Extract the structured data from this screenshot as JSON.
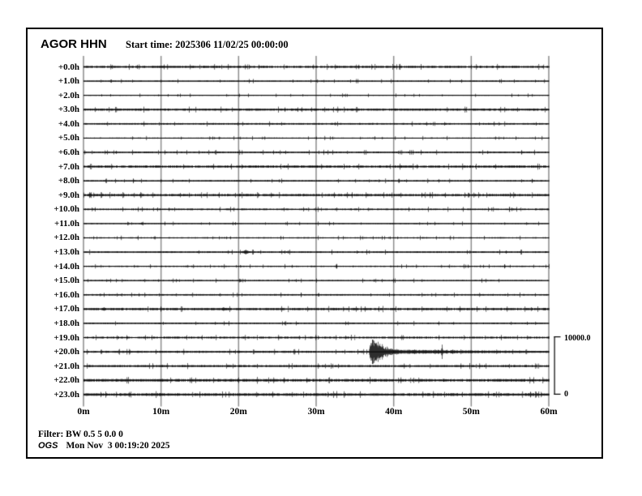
{
  "header": {
    "station": "AGOR HHN",
    "start_time_label": "Start time: 2025306 11/02/25 00:00:00"
  },
  "footer": {
    "filter": "Filter: BW 0.5 5 0.0 0",
    "agency": "OGS",
    "generated": "Mon Nov  3 00:19:20 2025"
  },
  "chart_data": {
    "type": "line",
    "subtype": "helicorder",
    "title": "AGOR HHN",
    "start_time": "2025306 11/02/25 00:00:00",
    "x_axis": {
      "ticks": [
        "0m",
        "10m",
        "20m",
        "30m",
        "40m",
        "50m",
        "60m"
      ],
      "tick_minutes": [
        0,
        10,
        20,
        30,
        40,
        50,
        60
      ],
      "range_minutes": [
        0,
        60
      ],
      "grid": true
    },
    "y_axis": {
      "unit": "hours since start",
      "rows_count": 24
    },
    "scale_bar": {
      "max_label": "10000.0",
      "min_label": "0",
      "counts": 10000,
      "spans_rows": 4
    },
    "colors": {
      "trace": "#000000",
      "grid": "#8c8c8c",
      "background": "#ffffff"
    },
    "main_event": {
      "row_label": "+20.0h",
      "onset_minute": 36.8,
      "peak_counts_approx": 2800,
      "coda_end_minute": 60
    },
    "rows": [
      {
        "label": "+0.0h",
        "noise_amp": 1.4,
        "density": 0.95,
        "events": []
      },
      {
        "label": "+1.0h",
        "noise_amp": 0.9,
        "density": 0.35,
        "events": []
      },
      {
        "label": "+2.0h",
        "noise_amp": 0.7,
        "density": 0.22,
        "events": []
      },
      {
        "label": "+3.0h",
        "noise_amp": 1.4,
        "density": 0.95,
        "events": []
      },
      {
        "label": "+4.0h",
        "noise_amp": 1.1,
        "density": 0.55,
        "events": []
      },
      {
        "label": "+5.0h",
        "noise_amp": 0.8,
        "density": 0.3,
        "events": []
      },
      {
        "label": "+6.0h",
        "noise_amp": 1.1,
        "density": 0.6,
        "events": []
      },
      {
        "label": "+7.0h",
        "noise_amp": 1.5,
        "density": 0.95,
        "events": []
      },
      {
        "label": "+8.0h",
        "noise_amp": 1.0,
        "density": 0.6,
        "events": []
      },
      {
        "label": "+9.0h",
        "noise_amp": 1.5,
        "density": 0.9,
        "events": [
          {
            "minute": 0.8,
            "amp": 2.5,
            "width": 0.4
          }
        ]
      },
      {
        "label": "+10.0h",
        "noise_amp": 1.1,
        "density": 0.6,
        "events": []
      },
      {
        "label": "+11.0h",
        "noise_amp": 0.8,
        "density": 0.4,
        "events": [
          {
            "minute": 7.5,
            "amp": 2.0,
            "width": 0.3
          }
        ]
      },
      {
        "label": "+12.0h",
        "noise_amp": 0.9,
        "density": 0.5,
        "events": []
      },
      {
        "label": "+13.0h",
        "noise_amp": 1.1,
        "density": 0.6,
        "events": [
          {
            "minute": 20.9,
            "amp": 2.6,
            "width": 0.8
          }
        ]
      },
      {
        "label": "+14.0h",
        "noise_amp": 0.9,
        "density": 0.5,
        "events": [
          {
            "minute": 32.6,
            "amp": 4.0,
            "width": 0.15
          }
        ]
      },
      {
        "label": "+15.0h",
        "noise_amp": 0.9,
        "density": 0.5,
        "events": []
      },
      {
        "label": "+16.0h",
        "noise_amp": 1.0,
        "density": 0.6,
        "events": []
      },
      {
        "label": "+17.0h",
        "noise_amp": 1.5,
        "density": 0.95,
        "events": [
          {
            "minute": 2.6,
            "amp": 2.5,
            "width": 0.5
          },
          {
            "minute": 18.0,
            "amp": 2.5,
            "width": 0.5
          },
          {
            "minute": 57.7,
            "amp": 3.0,
            "width": 0.1
          }
        ]
      },
      {
        "label": "+18.0h",
        "noise_amp": 1.0,
        "density": 0.6,
        "events": []
      },
      {
        "label": "+19.0h",
        "noise_amp": 1.3,
        "density": 0.75,
        "events": []
      },
      {
        "label": "+20.0h",
        "noise_amp": 1.3,
        "density": 0.8,
        "events": [
          {
            "type": "earthquake",
            "minute": 36.8,
            "amp": 20,
            "decay_min": 1.8,
            "coda_amp": 3.2
          },
          {
            "minute": 46.2,
            "amp": 11,
            "width": 0.12
          }
        ]
      },
      {
        "label": "+21.0h",
        "noise_amp": 1.4,
        "density": 0.85,
        "events": []
      },
      {
        "label": "+22.0h",
        "noise_amp": 1.7,
        "density": 0.95,
        "events": []
      },
      {
        "label": "+23.0h",
        "noise_amp": 1.7,
        "density": 0.95,
        "events": [
          {
            "minute": 57.6,
            "amp": 5,
            "width": 0.12
          },
          {
            "minute": 58.3,
            "amp": 5,
            "width": 0.12
          }
        ]
      }
    ]
  }
}
